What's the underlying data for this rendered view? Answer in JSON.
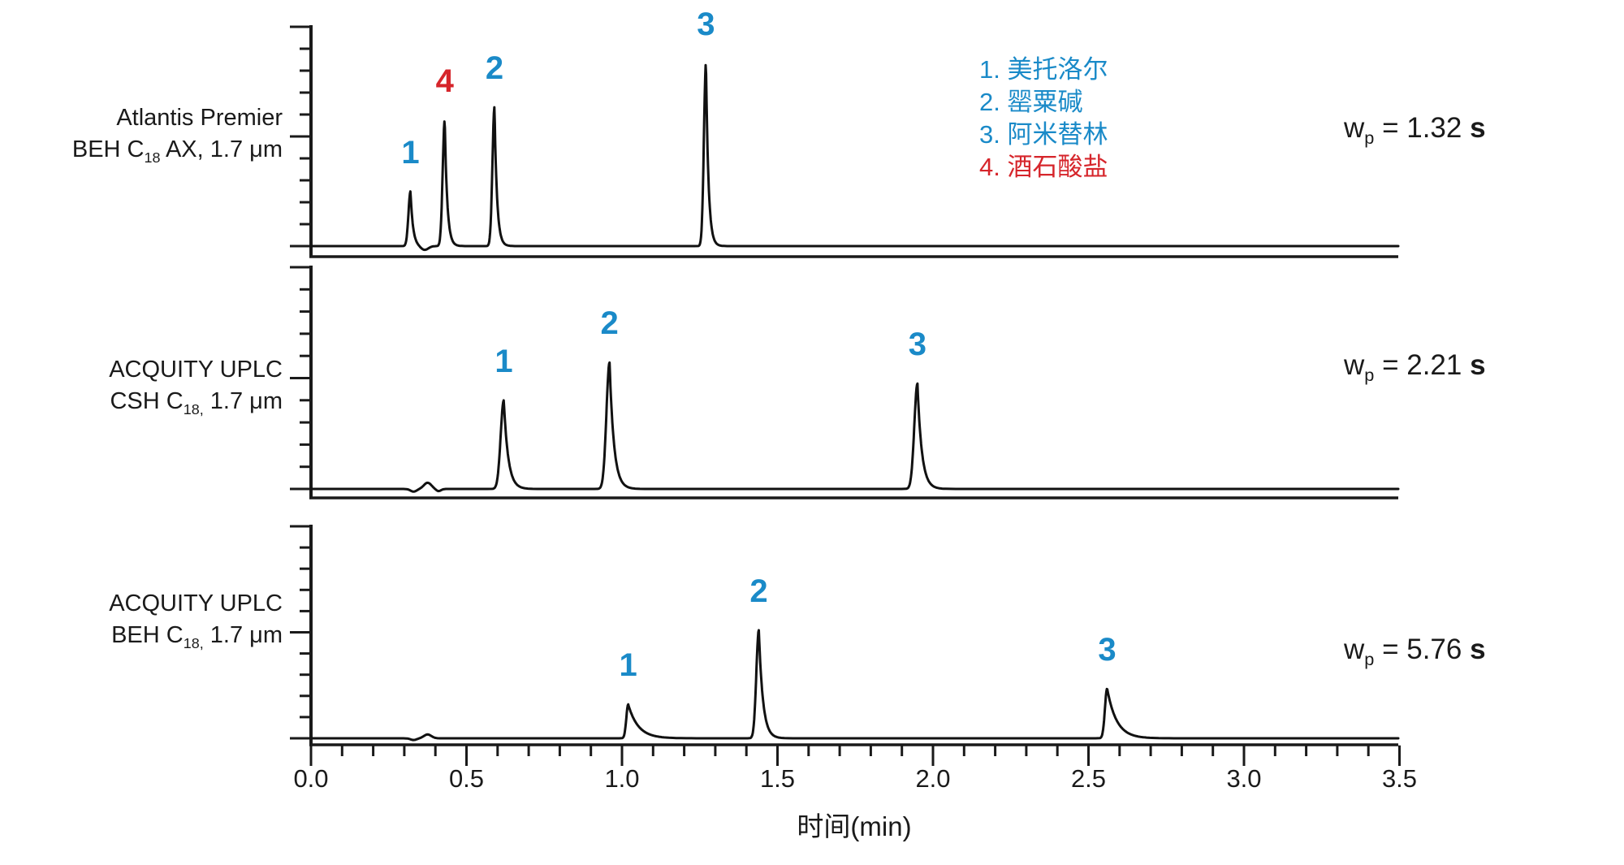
{
  "chart_data": {
    "type": "line",
    "title": "",
    "xlabel": "时间(min)",
    "ylabel": "",
    "xlim": [
      0.0,
      3.5
    ],
    "x_major_ticks": [
      "0.0",
      "0.5",
      "1.0",
      "1.5",
      "2.0",
      "2.5",
      "3.0",
      "3.5"
    ],
    "x_minor_step_min": 0.1,
    "grid": "off",
    "legend_position": "top-right-inside",
    "colors": {
      "trace": "#111111",
      "axis": "#1a1a1a",
      "blue": "#1a8ac8",
      "red": "#d6252b",
      "text": "#1a1a1a"
    },
    "legend": {
      "items": [
        {
          "label": "1. 美托洛尔",
          "color": "blue"
        },
        {
          "label": "2. 罂粟碱",
          "color": "blue"
        },
        {
          "label": "3. 阿米替林",
          "color": "blue"
        },
        {
          "label": "4. 酒石酸盐",
          "color": "red"
        }
      ]
    },
    "panels": [
      {
        "column_label": [
          [
            {
              "t": "Atlantis Premier"
            }
          ],
          [
            {
              "t": "BEH C"
            },
            {
              "t": "18",
              "sub": true
            },
            {
              "t": " AX, 1.7 μm"
            }
          ]
        ],
        "peak_width_label": {
          "symbol": "w",
          "symbol_sub": "p",
          "equals": " = ",
          "value": "1.32",
          "unit": " s"
        },
        "peaks": [
          {
            "label": "1",
            "color": "blue",
            "t_min": 0.32,
            "height_frac": 0.25,
            "sigma_min": 0.0065,
            "tail_tau_min": 0.008
          },
          {
            "label": "4",
            "color": "red",
            "t_min": 0.43,
            "height_frac": 0.575,
            "sigma_min": 0.0065,
            "tail_tau_min": 0.008
          },
          {
            "label": "2",
            "color": "blue",
            "t_min": 0.59,
            "height_frac": 0.635,
            "sigma_min": 0.0065,
            "tail_tau_min": 0.008
          },
          {
            "label": "3",
            "color": "blue",
            "t_min": 1.27,
            "height_frac": 0.835,
            "sigma_min": 0.0065,
            "tail_tau_min": 0.008
          }
        ],
        "baseline_artifacts": [
          {
            "t_min": 0.365,
            "amp_frac": -0.018,
            "sigma_min": 0.012
          }
        ]
      },
      {
        "column_label": [
          [
            {
              "t": "ACQUITY UPLC"
            }
          ],
          [
            {
              "t": "CSH C"
            },
            {
              "t": "18,",
              "sub": true
            },
            {
              "t": " 1.7 μm"
            }
          ]
        ],
        "peak_width_label": {
          "symbol": "w",
          "symbol_sub": "p",
          "equals": " = ",
          "value": "2.21",
          "unit": " s"
        },
        "peaks": [
          {
            "label": "1",
            "color": "blue",
            "t_min": 0.62,
            "height_frac": 0.4,
            "sigma_min": 0.01,
            "tail_tau_min": 0.014
          },
          {
            "label": "2",
            "color": "blue",
            "t_min": 0.96,
            "height_frac": 0.57,
            "sigma_min": 0.01,
            "tail_tau_min": 0.014
          },
          {
            "label": "3",
            "color": "blue",
            "t_min": 1.95,
            "height_frac": 0.475,
            "sigma_min": 0.01,
            "tail_tau_min": 0.014
          }
        ],
        "baseline_artifacts": [
          {
            "t_min": 0.33,
            "amp_frac": -0.012,
            "sigma_min": 0.01
          },
          {
            "t_min": 0.375,
            "amp_frac": 0.028,
            "sigma_min": 0.012
          },
          {
            "t_min": 0.41,
            "amp_frac": -0.01,
            "sigma_min": 0.008
          }
        ]
      },
      {
        "column_label": [
          [
            {
              "t": "ACQUITY UPLC"
            }
          ],
          [
            {
              "t": "BEH C"
            },
            {
              "t": "18,",
              "sub": true
            },
            {
              "t": " 1.7 μm"
            }
          ]
        ],
        "peak_width_label": {
          "symbol": "w",
          "symbol_sub": "p",
          "equals": " = ",
          "value": "5.76",
          "unit": " s"
        },
        "peaks": [
          {
            "label": "1",
            "color": "blue",
            "t_min": 1.02,
            "height_frac": 0.16,
            "sigma_min": 0.006,
            "tail_tau_min": 0.032
          },
          {
            "label": "2",
            "color": "blue",
            "t_min": 1.44,
            "height_frac": 0.51,
            "sigma_min": 0.008,
            "tail_tau_min": 0.013
          },
          {
            "label": "3",
            "color": "blue",
            "t_min": 2.56,
            "height_frac": 0.235,
            "sigma_min": 0.007,
            "tail_tau_min": 0.03
          }
        ],
        "baseline_artifacts": [
          {
            "t_min": 0.33,
            "amp_frac": -0.008,
            "sigma_min": 0.01
          },
          {
            "t_min": 0.375,
            "amp_frac": 0.018,
            "sigma_min": 0.012
          }
        ]
      }
    ]
  }
}
